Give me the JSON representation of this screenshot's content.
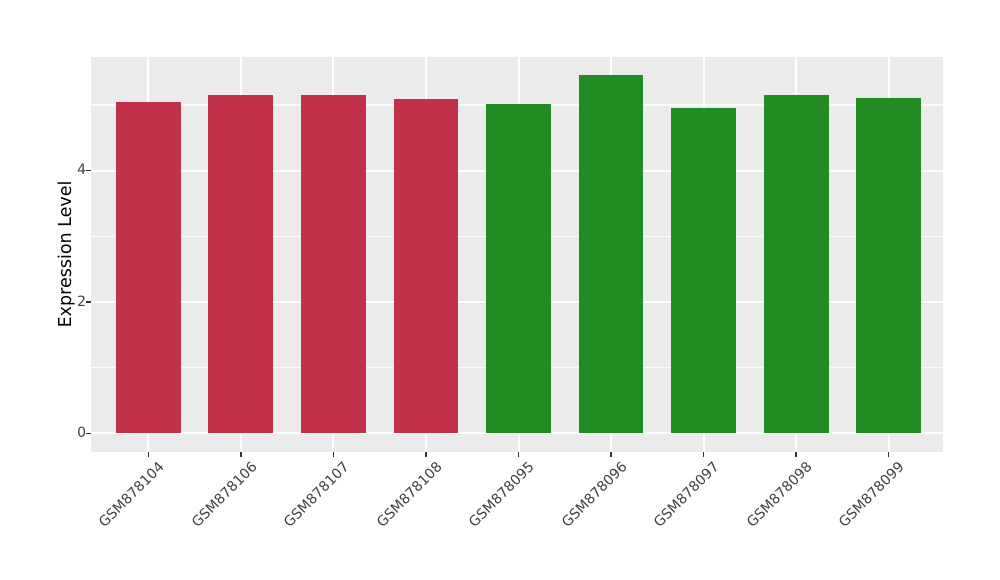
{
  "chart_data": {
    "type": "bar",
    "title": "",
    "xlabel": "",
    "ylabel": "Expression Level",
    "categories": [
      "GSM878104",
      "GSM878106",
      "GSM878107",
      "GSM878108",
      "GSM878095",
      "GSM878096",
      "GSM878097",
      "GSM878098",
      "GSM878099"
    ],
    "values": [
      5.04,
      5.15,
      5.15,
      5.09,
      5.01,
      5.46,
      4.96,
      5.16,
      5.1
    ],
    "bar_colors": [
      "#C23149",
      "#C23149",
      "#C23149",
      "#C23149",
      "#228B22",
      "#228B22",
      "#228B22",
      "#228B22",
      "#228B22"
    ],
    "group_colors": {
      "red_group": "#C23149",
      "green_group": "#228B22"
    },
    "yticks": [
      0,
      2,
      4
    ],
    "minor_yticks": [
      1,
      3,
      5
    ],
    "ylim": [
      -0.28,
      5.73
    ],
    "bar_width_ratio": 0.7,
    "grid": true,
    "legend": "none",
    "styles": {
      "figure_background": "#FFFFFF",
      "panel_background": "#EBEBEB",
      "gridline_color": "#FFFFFF",
      "axis_text_color": "#404040",
      "axis_title_color": "#000000",
      "tick_mark_color": "#333333"
    }
  }
}
